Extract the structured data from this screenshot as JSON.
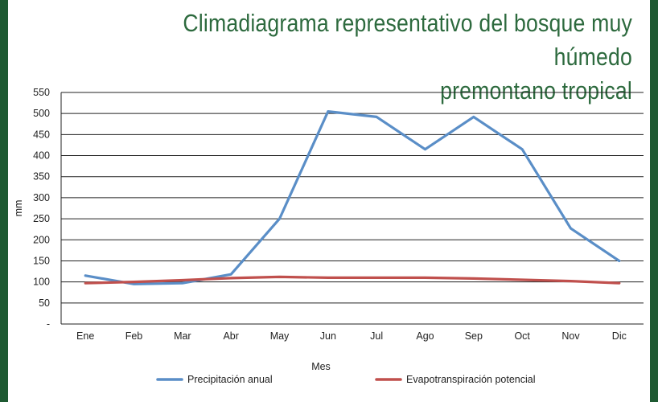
{
  "colors": {
    "background": "#1e5a32",
    "title": "#2d6a3e",
    "precipitation": "#5a8ec7",
    "evapotranspiration": "#c0504d"
  },
  "chart_data": {
    "type": "line",
    "title": "Climadiagrama representativo del bosque muy húmedo premontano tropical",
    "title_lines": [
      "Climadiagrama representativo del bosque muy húmedo",
      "premontano tropical"
    ],
    "xlabel": "Mes",
    "ylabel": "mm",
    "categories": [
      "Ene",
      "Feb",
      "Mar",
      "Abr",
      "May",
      "Jun",
      "Jul",
      "Ago",
      "Sep",
      "Oct",
      "Nov",
      "Dic"
    ],
    "yticks": [
      "-",
      "50",
      "100",
      "150",
      "200",
      "250",
      "300",
      "350",
      "400",
      "450",
      "500",
      "550"
    ],
    "ylim": [
      0,
      550
    ],
    "grid": true,
    "legend_position": "bottom",
    "series": [
      {
        "name": "Precipitación anual",
        "color": "#5a8ec7",
        "values": [
          115,
          95,
          97,
          118,
          250,
          505,
          492,
          415,
          492,
          415,
          227,
          150
        ]
      },
      {
        "name": "Evapotranspiración potencial",
        "color": "#c0504d",
        "values": [
          97,
          100,
          104,
          109,
          112,
          110,
          110,
          110,
          108,
          105,
          102,
          97
        ]
      }
    ]
  }
}
